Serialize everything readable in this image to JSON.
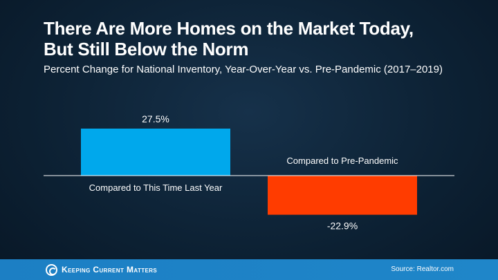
{
  "header": {
    "title_line1": "There Are More Homes on the Market Today,",
    "title_line2": "But Still Below the Norm",
    "subtitle": "Percent Change for National Inventory, Year-Over-Year vs. Pre-Pandemic (2017–2019)"
  },
  "chart_data": {
    "type": "bar",
    "title": "There Are More Homes on the Market Today, But Still Below the Norm",
    "subtitle": "Percent Change for National Inventory, Year-Over-Year vs. Pre-Pandemic (2017–2019)",
    "categories": [
      "Compared to This Time Last Year",
      "Compared to Pre-Pandemic"
    ],
    "values": [
      27.5,
      -22.9
    ],
    "data_labels": [
      "27.5%",
      "-22.9%"
    ],
    "colors": [
      "#00a8ec",
      "#ff3c00"
    ],
    "xlabel": "",
    "ylabel": "",
    "ylim": [
      -30,
      30
    ],
    "grid": false,
    "legend": "none"
  },
  "footer": {
    "logo_text": "Keeping Current Matters",
    "source": "Source: Realtor.com"
  },
  "colors": {
    "background": "#0d2235",
    "footer": "#1f86c9",
    "positive_bar": "#00a8ec",
    "negative_bar": "#ff3c00"
  }
}
